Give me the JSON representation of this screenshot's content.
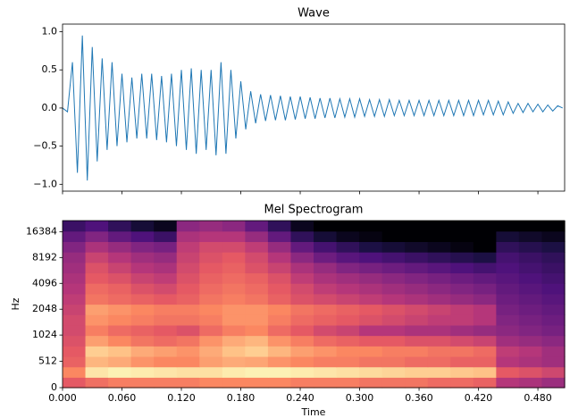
{
  "chart_data": [
    {
      "type": "line",
      "title": "Wave",
      "color": "#1f77b4",
      "x": [
        0,
        0.005,
        0.01,
        0.015,
        0.02,
        0.025,
        0.03,
        0.035,
        0.04,
        0.045,
        0.05,
        0.055,
        0.06,
        0.065,
        0.07,
        0.075,
        0.08,
        0.085,
        0.09,
        0.095,
        0.1,
        0.105,
        0.11,
        0.115,
        0.12,
        0.125,
        0.13,
        0.135,
        0.14,
        0.145,
        0.15,
        0.155,
        0.16,
        0.165,
        0.17,
        0.175,
        0.18,
        0.185,
        0.19,
        0.195,
        0.2,
        0.205,
        0.21,
        0.215,
        0.22,
        0.225,
        0.23,
        0.235,
        0.24,
        0.245,
        0.25,
        0.255,
        0.26,
        0.265,
        0.27,
        0.275,
        0.28,
        0.285,
        0.29,
        0.295,
        0.3,
        0.305,
        0.31,
        0.315,
        0.32,
        0.325,
        0.33,
        0.335,
        0.34,
        0.345,
        0.35,
        0.355,
        0.36,
        0.365,
        0.37,
        0.375,
        0.38,
        0.385,
        0.39,
        0.395,
        0.4,
        0.405,
        0.41,
        0.415,
        0.42,
        0.425,
        0.43,
        0.435,
        0.44,
        0.445,
        0.45,
        0.455,
        0.46,
        0.465,
        0.47,
        0.475,
        0.48,
        0.485,
        0.49,
        0.495,
        0.5,
        0.505
      ],
      "values": [
        0,
        -0.05,
        0.6,
        -0.85,
        0.95,
        -0.95,
        0.8,
        -0.7,
        0.65,
        -0.55,
        0.6,
        -0.5,
        0.45,
        -0.45,
        0.4,
        -0.4,
        0.45,
        -0.4,
        0.45,
        -0.42,
        0.42,
        -0.45,
        0.45,
        -0.5,
        0.5,
        -0.55,
        0.52,
        -0.6,
        0.5,
        -0.55,
        0.5,
        -0.62,
        0.6,
        -0.6,
        0.5,
        -0.4,
        0.35,
        -0.28,
        0.22,
        -0.2,
        0.18,
        -0.17,
        0.17,
        -0.16,
        0.16,
        -0.16,
        0.15,
        -0.15,
        0.15,
        -0.14,
        0.14,
        -0.14,
        0.13,
        -0.13,
        0.13,
        -0.13,
        0.12,
        -0.12,
        0.12,
        -0.12,
        0.12,
        -0.11,
        0.11,
        -0.11,
        0.11,
        -0.11,
        0.11,
        -0.1,
        0.1,
        -0.1,
        0.1,
        -0.1,
        0.1,
        -0.1,
        0.1,
        -0.1,
        0.1,
        -0.1,
        0.1,
        -0.1,
        0.1,
        -0.1,
        0.1,
        -0.1,
        0.1,
        -0.09,
        0.1,
        -0.09,
        0.09,
        -0.09,
        0.08,
        -0.07,
        0.06,
        -0.06,
        0.06,
        -0.05,
        0.05,
        -0.05,
        0.04,
        -0.04,
        0.03,
        0
      ],
      "xlim": [
        0,
        0.507
      ],
      "xticks": [
        0,
        0.06,
        0.12,
        0.18,
        0.24,
        0.3,
        0.36,
        0.42,
        0.48
      ],
      "xticklabels": false,
      "ylim": [
        -1.09,
        1.1
      ],
      "yticks": [
        {
          "value": -1,
          "label": "−1.0"
        },
        {
          "value": -0.5,
          "label": "−0.5"
        },
        {
          "value": 0,
          "label": "0.0"
        },
        0.5,
        {
          "value": 1,
          "label": "1.0"
        }
      ]
    },
    {
      "type": "heatmap",
      "title": "Mel Spectrogram",
      "xlabel": "Time",
      "ylabel": "Hz",
      "colormap": "magma",
      "xlim": [
        0,
        0.507
      ],
      "xticks": [
        {
          "value": 0,
          "label": "0.000"
        },
        {
          "value": 0.06,
          "label": "0.060"
        },
        {
          "value": 0.12,
          "label": "0.120"
        },
        {
          "value": 0.18,
          "label": "0.180"
        },
        {
          "value": 0.24,
          "label": "0.240"
        },
        {
          "value": 0.3,
          "label": "0.300"
        },
        {
          "value": 0.36,
          "label": "0.360"
        },
        {
          "value": 0.42,
          "label": "0.420"
        },
        {
          "value": 0.48,
          "label": "0.480"
        }
      ],
      "yscale": "symlog",
      "linthresh": 1000,
      "linscale": 2,
      "ylim": [
        0,
        22050
      ],
      "yticks": [
        0,
        512,
        1024,
        2048,
        4096,
        8192,
        16384
      ],
      "zlim": [
        -80,
        0
      ],
      "z": [
        [
          -30,
          -25,
          -22,
          -22,
          -22,
          -22,
          -20,
          -20,
          -20,
          -20,
          -22,
          -22,
          -22,
          -24,
          -24,
          -24,
          -26,
          -26,
          -28,
          -40,
          -42,
          -45
        ],
        [
          -20,
          -4,
          -2,
          -3,
          -4,
          -5,
          -5,
          -3,
          -2,
          -2,
          -3,
          -4,
          -5,
          -6,
          -7,
          -8,
          -8,
          -9,
          -10,
          -30,
          -32,
          -35
        ],
        [
          -28,
          -12,
          -14,
          -18,
          -20,
          -20,
          -16,
          -14,
          -15,
          -18,
          -20,
          -22,
          -22,
          -24,
          -24,
          -26,
          -26,
          -28,
          -28,
          -40,
          -42,
          -44
        ],
        [
          -30,
          -8,
          -10,
          -14,
          -16,
          -18,
          -14,
          -10,
          -8,
          -12,
          -16,
          -18,
          -20,
          -20,
          -22,
          -22,
          -24,
          -24,
          -26,
          -38,
          -40,
          -44
        ],
        [
          -32,
          -16,
          -20,
          -24,
          -26,
          -24,
          -18,
          -14,
          -12,
          -18,
          -22,
          -26,
          -28,
          -30,
          -30,
          -32,
          -32,
          -34,
          -36,
          -44,
          -46,
          -48
        ],
        [
          -34,
          -22,
          -26,
          -28,
          -30,
          -32,
          -26,
          -22,
          -20,
          -26,
          -30,
          -34,
          -36,
          -40,
          -40,
          -42,
          -42,
          -44,
          -46,
          -48,
          -50,
          -52
        ],
        [
          -34,
          -18,
          -20,
          -22,
          -24,
          -24,
          -22,
          -18,
          -18,
          -22,
          -26,
          -28,
          -30,
          -32,
          -34,
          -36,
          -38,
          -38,
          -40,
          -50,
          -52,
          -54
        ],
        [
          -36,
          -16,
          -18,
          -20,
          -22,
          -22,
          -20,
          -18,
          -18,
          -20,
          -24,
          -26,
          -28,
          -30,
          -32,
          -34,
          -36,
          -38,
          -40,
          -52,
          -54,
          -56
        ],
        [
          -38,
          -24,
          -26,
          -28,
          -30,
          -28,
          -24,
          -22,
          -24,
          -28,
          -32,
          -34,
          -36,
          -38,
          -40,
          -42,
          -44,
          -46,
          -48,
          -54,
          -56,
          -58
        ],
        [
          -40,
          -26,
          -28,
          -32,
          -34,
          -30,
          -26,
          -24,
          -26,
          -30,
          -34,
          -38,
          -40,
          -42,
          -44,
          -46,
          -48,
          -50,
          -52,
          -56,
          -58,
          -60
        ],
        [
          -42,
          -30,
          -32,
          -36,
          -38,
          -32,
          -28,
          -26,
          -28,
          -32,
          -38,
          -42,
          -44,
          -46,
          -48,
          -50,
          -52,
          -54,
          -56,
          -58,
          -60,
          -62
        ],
        [
          -44,
          -32,
          -36,
          -40,
          -42,
          -34,
          -30,
          -28,
          -32,
          -36,
          -42,
          -46,
          -50,
          -52,
          -54,
          -56,
          -58,
          -60,
          -62,
          -60,
          -62,
          -64
        ],
        [
          -46,
          -36,
          -40,
          -44,
          -46,
          -36,
          -32,
          -30,
          -34,
          -40,
          -48,
          -54,
          -58,
          -60,
          -62,
          -64,
          -66,
          -68,
          -70,
          -62,
          -64,
          -66
        ],
        [
          -50,
          -42,
          -46,
          -50,
          -52,
          -38,
          -34,
          -34,
          -38,
          -46,
          -56,
          -62,
          -66,
          -70,
          -72,
          -74,
          -76,
          -78,
          -80,
          -66,
          -68,
          -70
        ],
        [
          -56,
          -50,
          -56,
          -60,
          -64,
          -42,
          -40,
          -40,
          -46,
          -56,
          -66,
          -72,
          -76,
          -78,
          -80,
          -80,
          -80,
          -80,
          -80,
          -72,
          -74,
          -76
        ],
        [
          -64,
          -60,
          -66,
          -72,
          -76,
          -48,
          -46,
          -48,
          -56,
          -66,
          -76,
          -80,
          -80,
          -80,
          -80,
          -80,
          -80,
          -80,
          -80,
          -80,
          -80,
          -80
        ]
      ]
    }
  ]
}
